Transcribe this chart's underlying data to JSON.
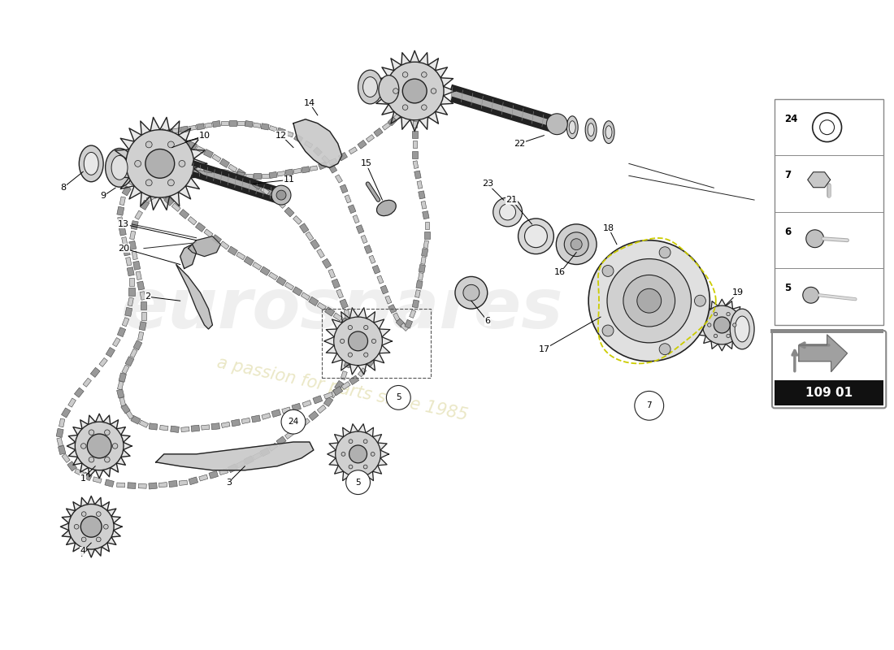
{
  "bg_color": "#ffffff",
  "line_color": "#222222",
  "watermark_color": "#d0d0d0",
  "watermark_text1": "eurospares",
  "watermark_text2": "a passion for parts since 1985",
  "diagram_code": "109 01",
  "gasket_color": "#cccc00",
  "label_color": "#000000",
  "sidebar_items": [
    {
      "num": "24",
      "shape": "washer"
    },
    {
      "num": "7",
      "shape": "bolt_hex"
    },
    {
      "num": "6",
      "shape": "bolt_short"
    },
    {
      "num": "5",
      "shape": "bolt_long"
    }
  ]
}
